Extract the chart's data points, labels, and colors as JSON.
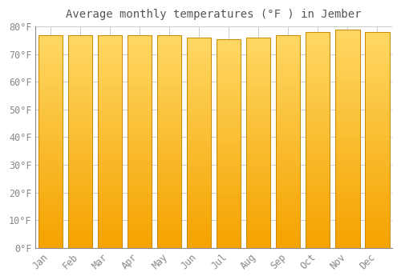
{
  "title": "Average monthly temperatures (°F ) in Jember",
  "months": [
    "Jan",
    "Feb",
    "Mar",
    "Apr",
    "May",
    "Jun",
    "Jul",
    "Aug",
    "Sep",
    "Oct",
    "Nov",
    "Dec"
  ],
  "values": [
    77,
    77,
    77,
    77,
    77,
    76,
    75.5,
    76,
    77,
    78,
    79,
    78
  ],
  "bar_color_bottom": "#F5A300",
  "bar_color_top": "#FFD966",
  "bar_color_edge": "#CC8800",
  "background_color": "#FFFFFF",
  "plot_bg_color": "#FFFFFF",
  "ylim": [
    0,
    80
  ],
  "ytick_step": 10,
  "title_fontsize": 10,
  "tick_fontsize": 8.5,
  "grid_color": "#CCCCCC",
  "tick_color": "#888888"
}
